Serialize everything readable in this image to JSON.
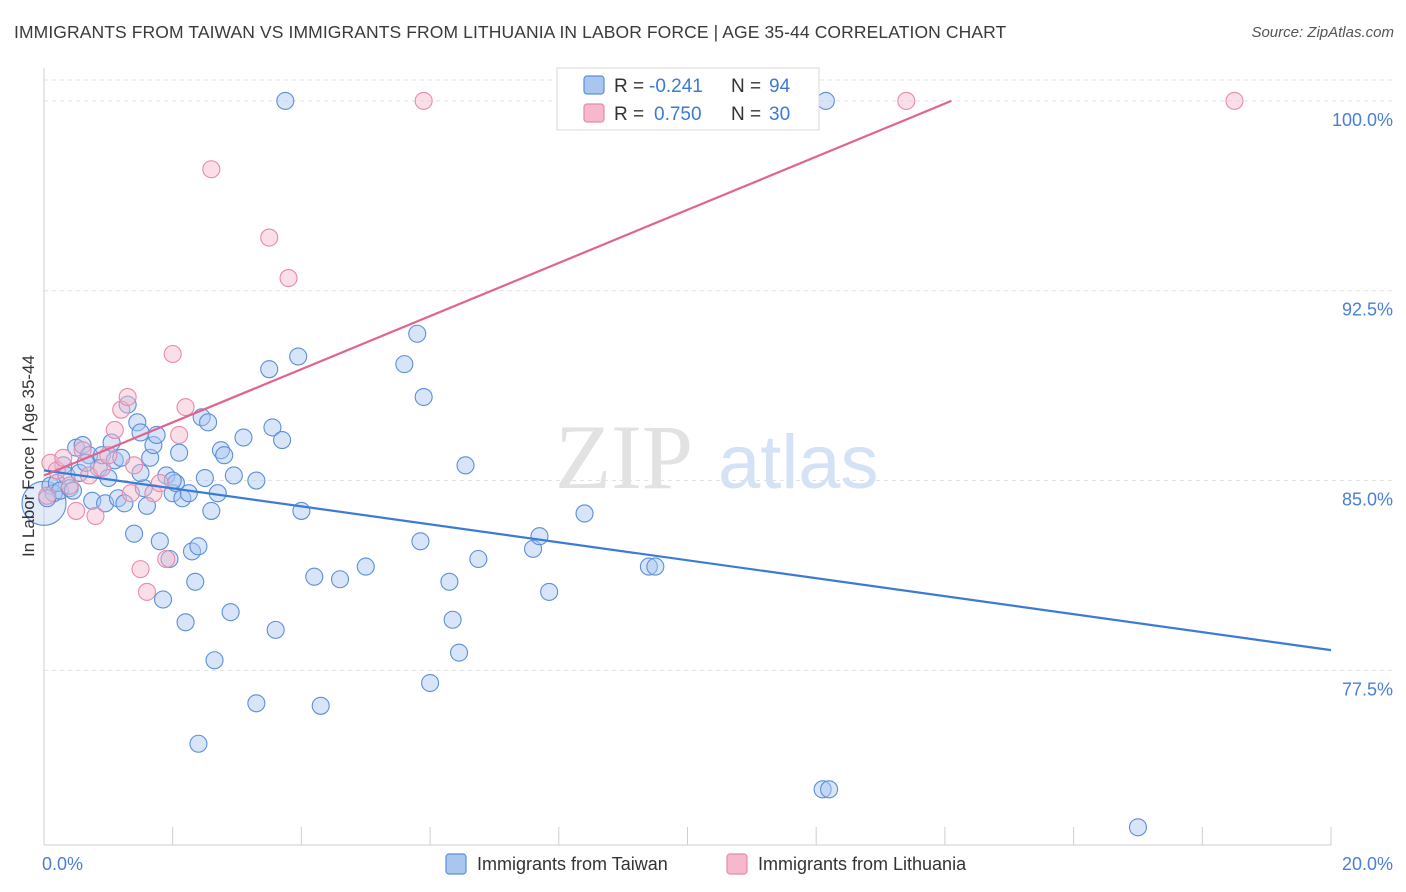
{
  "title": "IMMIGRANTS FROM TAIWAN VS IMMIGRANTS FROM LITHUANIA IN LABOR FORCE | AGE 35-44 CORRELATION CHART",
  "source": "Source: ZipAtlas.com",
  "watermark": {
    "zip": "ZIP",
    "atlas": "atlas"
  },
  "legend": {
    "rows": [
      {
        "r_label": "R = ",
        "r_value": "-0.241",
        "n_label": "N = ",
        "n_value": "94"
      },
      {
        "r_label": "R = ",
        "r_value": "0.750",
        "n_label": "N = ",
        "n_value": "30"
      }
    ]
  },
  "bottom_legend": [
    "Immigrants from Taiwan",
    "Immigrants from Lithuania"
  ],
  "colors": {
    "taiwan_fill": "#a9c6ef",
    "taiwan_stroke": "#5b8fd9",
    "taiwan_line": "#3b7bd6",
    "lithuania_fill": "#f6b9cc",
    "lithuania_stroke": "#e88aa8",
    "lithuania_line": "#e0648f",
    "tick_text": "#4a7fd6"
  },
  "chart_data": {
    "type": "scatter",
    "title": "IMMIGRANTS FROM TAIWAN VS IMMIGRANTS FROM LITHUANIA IN LABOR FORCE | AGE 35-44 CORRELATION CHART",
    "xlabel": "",
    "ylabel": "In Labor Force | Age 35-44",
    "xlim": [
      0,
      20
    ],
    "ylim": [
      70.6,
      101.3
    ],
    "x_tick_labels": [
      "0.0%",
      "20.0%"
    ],
    "y_ticks": [
      77.5,
      85.0,
      92.5,
      100.0
    ],
    "y_tick_labels": [
      "77.5%",
      "85.0%",
      "92.5%",
      "100.0%"
    ],
    "grid": true,
    "legend_position": "top-center",
    "series": [
      {
        "name": "Immigrants from Taiwan",
        "R": -0.241,
        "N": 94,
        "trend": {
          "x": [
            0,
            20
          ],
          "y": [
            85.4,
            78.3
          ]
        },
        "points": [
          [
            0.0,
            84.1
          ],
          [
            0.1,
            84.8
          ],
          [
            0.15,
            84.5
          ],
          [
            0.2,
            84.9
          ],
          [
            0.25,
            84.6
          ],
          [
            0.3,
            85.6
          ],
          [
            0.35,
            85.2
          ],
          [
            0.4,
            84.7
          ],
          [
            0.5,
            86.3
          ],
          [
            0.55,
            85.3
          ],
          [
            0.6,
            86.4
          ],
          [
            0.7,
            86.0
          ],
          [
            0.75,
            84.2
          ],
          [
            0.85,
            85.5
          ],
          [
            0.9,
            86.0
          ],
          [
            0.95,
            84.1
          ],
          [
            1.0,
            85.1
          ],
          [
            1.05,
            86.5
          ],
          [
            1.1,
            85.8
          ],
          [
            1.15,
            84.3
          ],
          [
            1.2,
            85.9
          ],
          [
            1.3,
            88.0
          ],
          [
            1.4,
            82.9
          ],
          [
            1.45,
            87.3
          ],
          [
            1.5,
            86.9
          ],
          [
            1.55,
            84.7
          ],
          [
            1.6,
            84.0
          ],
          [
            1.65,
            85.9
          ],
          [
            1.7,
            86.4
          ],
          [
            1.75,
            86.8
          ],
          [
            1.8,
            82.6
          ],
          [
            1.85,
            80.3
          ],
          [
            1.9,
            85.2
          ],
          [
            1.95,
            81.9
          ],
          [
            2.0,
            84.5
          ],
          [
            2.05,
            84.9
          ],
          [
            2.1,
            86.1
          ],
          [
            2.15,
            84.3
          ],
          [
            2.2,
            79.4
          ],
          [
            2.25,
            84.5
          ],
          [
            2.3,
            82.2
          ],
          [
            2.35,
            81.0
          ],
          [
            2.4,
            82.4
          ],
          [
            2.45,
            87.5
          ],
          [
            2.5,
            85.1
          ],
          [
            2.55,
            87.3
          ],
          [
            2.6,
            83.8
          ],
          [
            2.65,
            77.9
          ],
          [
            2.7,
            84.5
          ],
          [
            2.75,
            86.2
          ],
          [
            2.8,
            86.0
          ],
          [
            2.9,
            79.8
          ],
          [
            2.95,
            85.2
          ],
          [
            3.1,
            86.7
          ],
          [
            3.3,
            76.2
          ],
          [
            3.5,
            89.4
          ],
          [
            3.55,
            87.1
          ],
          [
            3.6,
            79.1
          ],
          [
            3.7,
            86.6
          ],
          [
            3.75,
            100.0
          ],
          [
            3.95,
            89.9
          ],
          [
            4.0,
            83.8
          ],
          [
            4.2,
            81.2
          ],
          [
            4.3,
            76.1
          ],
          [
            4.6,
            81.1
          ],
          [
            5.0,
            81.6
          ],
          [
            5.6,
            89.6
          ],
          [
            5.8,
            90.8
          ],
          [
            5.85,
            82.6
          ],
          [
            5.9,
            88.3
          ],
          [
            6.0,
            77.0
          ],
          [
            6.3,
            81.0
          ],
          [
            6.35,
            79.5
          ],
          [
            6.45,
            78.2
          ],
          [
            6.55,
            85.6
          ],
          [
            6.75,
            81.9
          ],
          [
            7.6,
            82.3
          ],
          [
            7.7,
            82.8
          ],
          [
            7.85,
            80.6
          ],
          [
            8.4,
            83.7
          ],
          [
            9.4,
            81.6
          ],
          [
            9.5,
            81.6
          ],
          [
            12.1,
            72.8
          ],
          [
            12.2,
            72.8
          ],
          [
            17.0,
            71.3
          ],
          [
            2.4,
            74.6
          ],
          [
            12.15,
            100.0
          ],
          [
            0.05,
            84.3
          ],
          [
            0.45,
            84.6
          ],
          [
            1.25,
            84.1
          ],
          [
            2.0,
            85.0
          ],
          [
            3.3,
            85.0
          ],
          [
            1.5,
            85.3
          ],
          [
            0.65,
            85.7
          ]
        ]
      },
      {
        "name": "Immigrants from Lithuania",
        "R": 0.75,
        "N": 30,
        "trend": {
          "x": [
            0,
            14.1
          ],
          "y": [
            85.2,
            100.0
          ]
        },
        "points": [
          [
            0.05,
            84.4
          ],
          [
            0.1,
            85.7
          ],
          [
            0.2,
            85.4
          ],
          [
            0.3,
            85.9
          ],
          [
            0.4,
            84.8
          ],
          [
            0.5,
            83.8
          ],
          [
            0.6,
            86.2
          ],
          [
            0.7,
            85.2
          ],
          [
            0.8,
            83.6
          ],
          [
            0.9,
            85.5
          ],
          [
            1.0,
            86.0
          ],
          [
            1.1,
            87.0
          ],
          [
            1.2,
            87.8
          ],
          [
            1.3,
            88.3
          ],
          [
            1.4,
            85.6
          ],
          [
            1.5,
            81.5
          ],
          [
            1.6,
            80.6
          ],
          [
            1.7,
            84.5
          ],
          [
            1.8,
            84.9
          ],
          [
            1.9,
            81.9
          ],
          [
            2.0,
            90.0
          ],
          [
            2.1,
            86.8
          ],
          [
            2.2,
            87.9
          ],
          [
            2.6,
            97.3
          ],
          [
            3.5,
            94.6
          ],
          [
            3.8,
            93.0
          ],
          [
            5.9,
            100.0
          ],
          [
            13.4,
            100.0
          ],
          [
            18.5,
            100.0
          ],
          [
            1.35,
            84.5
          ]
        ]
      }
    ]
  }
}
